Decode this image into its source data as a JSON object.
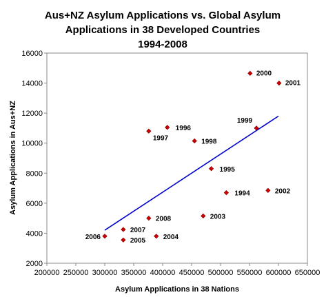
{
  "chart_data": {
    "type": "scatter",
    "title": [
      "Aus+NZ Asylum Applications vs. Global Asylum",
      "Applications in 38 Developed Countries",
      "1994-2008"
    ],
    "xlabel": "Asylum Applications in 38 Nations",
    "ylabel": "Asylum Applications in Aus+NZ",
    "xlim": [
      200000,
      650000
    ],
    "ylim": [
      2000,
      16000
    ],
    "x_ticks": [
      "200000",
      "250000",
      "300000",
      "350000",
      "400000",
      "450000",
      "500000",
      "550000",
      "600000",
      "650000"
    ],
    "y_ticks": [
      "2000",
      "4000",
      "6000",
      "8000",
      "10000",
      "12000",
      "14000",
      "16000"
    ],
    "points": [
      {
        "label": "1994",
        "x": 510000,
        "y": 6700
      },
      {
        "label": "1995",
        "x": 484000,
        "y": 8300
      },
      {
        "label": "1996",
        "x": 408000,
        "y": 11050
      },
      {
        "label": "1997",
        "x": 376000,
        "y": 10800
      },
      {
        "label": "1998",
        "x": 455000,
        "y": 10150
      },
      {
        "label": "1999",
        "x": 562000,
        "y": 11000
      },
      {
        "label": "2000",
        "x": 551000,
        "y": 14650
      },
      {
        "label": "2001",
        "x": 601000,
        "y": 14000
      },
      {
        "label": "2002",
        "x": 582000,
        "y": 6850
      },
      {
        "label": "2003",
        "x": 470000,
        "y": 5150
      },
      {
        "label": "2004",
        "x": 389000,
        "y": 3800
      },
      {
        "label": "2005",
        "x": 332000,
        "y": 3550
      },
      {
        "label": "2006",
        "x": 300000,
        "y": 3800
      },
      {
        "label": "2007",
        "x": 332000,
        "y": 4250
      },
      {
        "label": "2008",
        "x": 376000,
        "y": 5000
      }
    ],
    "trendline": {
      "x": [
        300000,
        600000
      ],
      "y": [
        4200,
        11800
      ]
    },
    "colors": {
      "marker": "#cc0000",
      "marker_stroke": "#800000",
      "trendline": "#0000cc",
      "axis": "#888888"
    },
    "grid": false,
    "legend": "none"
  }
}
